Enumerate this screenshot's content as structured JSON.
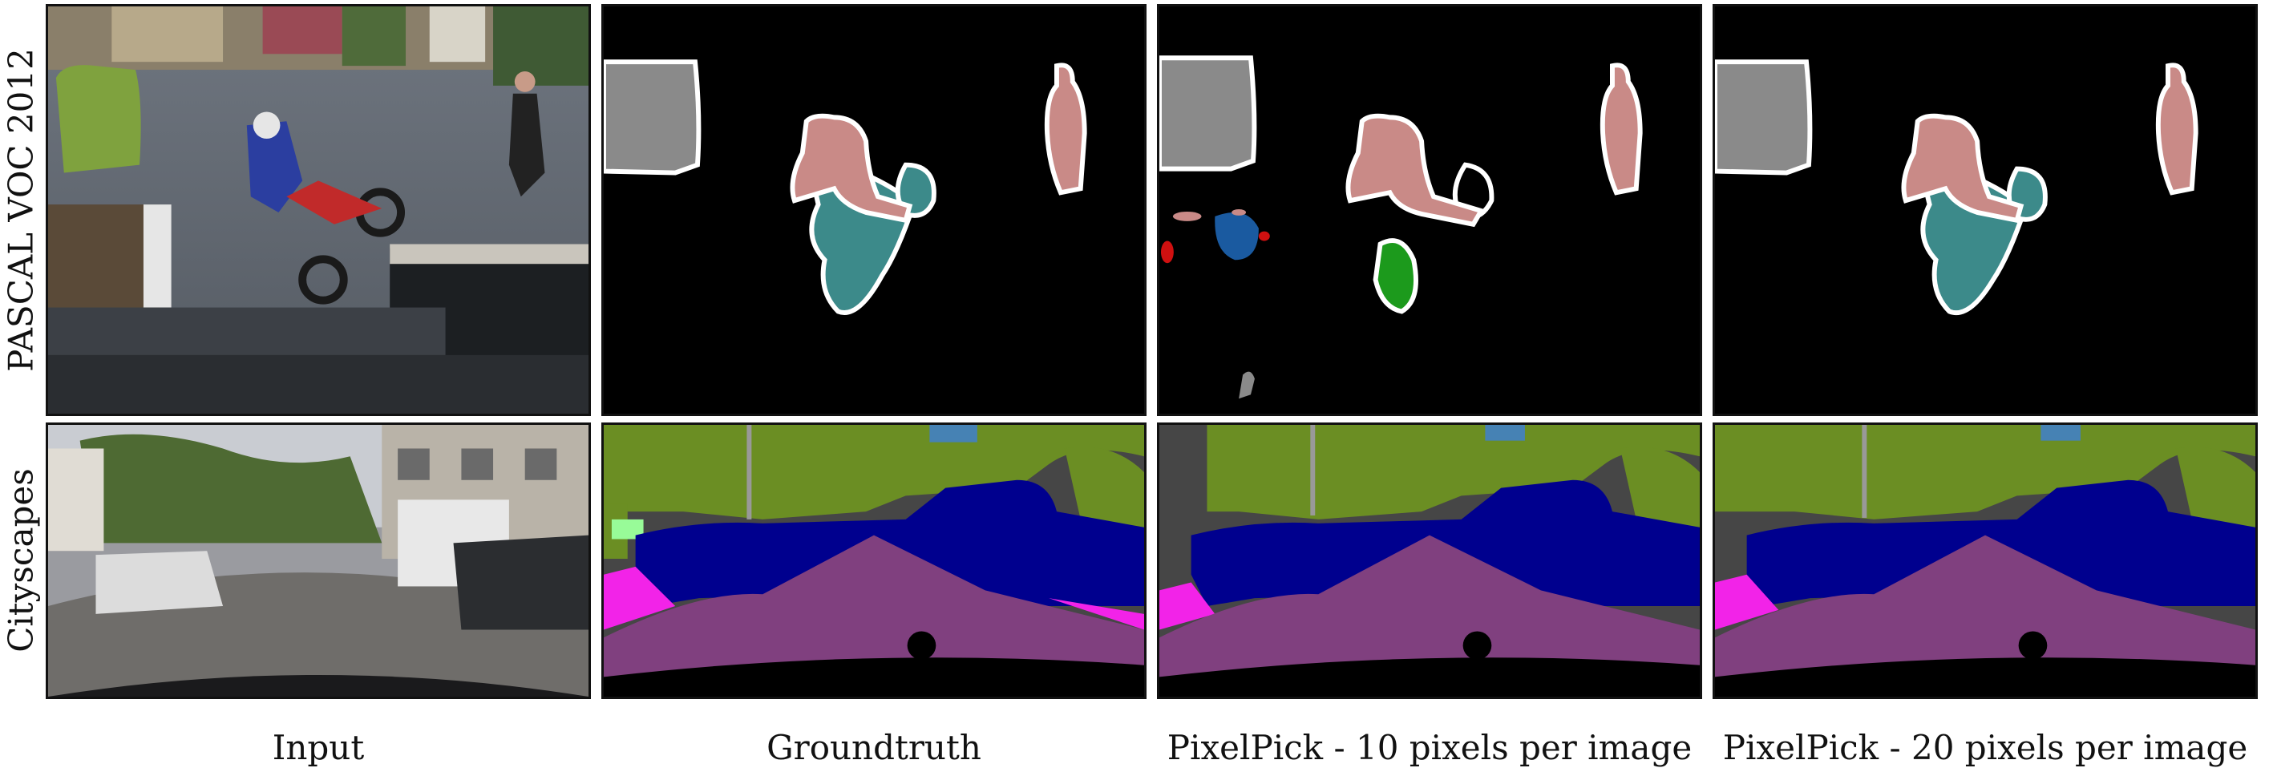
{
  "figure": {
    "row_labels": [
      "PASCAL VOC 2012",
      "Cityscapes"
    ],
    "column_labels": [
      "Input",
      "Groundtruth",
      "PixelPick - 10 pixels per image",
      "PixelPick - 20 pixels per image"
    ],
    "colors": {
      "person": "#c98a87",
      "motorbike": "#3c8a8a",
      "background_object": "#8a8a8a",
      "boundary": "#ffffff",
      "false_green": "#1c9a1c",
      "false_blue": "#1a5aa0",
      "false_red": "#d01010",
      "road": "#80407f",
      "vegetation": "#6b8e23",
      "car": "#00008e",
      "building": "#464646",
      "sidewalk": "#f223e8",
      "sky": "#4682b4",
      "terrain": "#98fb98"
    }
  }
}
